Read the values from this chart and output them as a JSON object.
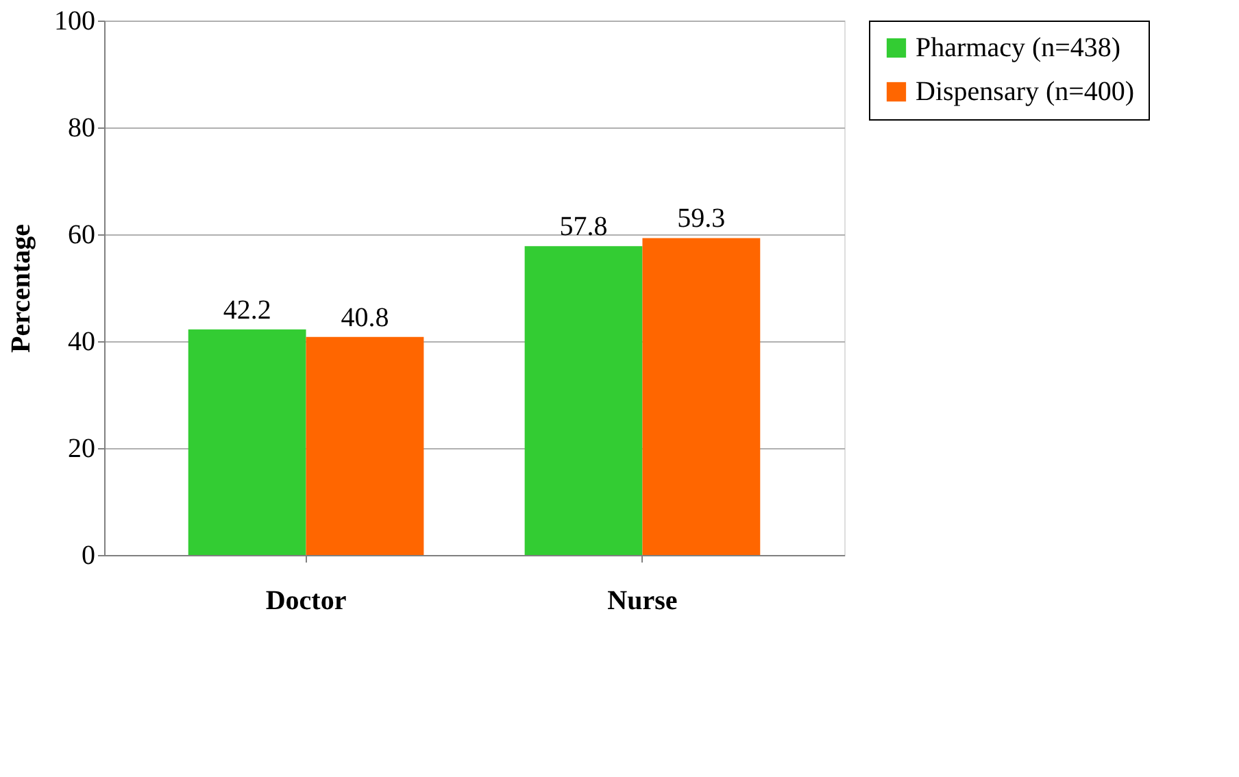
{
  "chart_data": {
    "type": "bar",
    "categories": [
      "Doctor",
      "Nurse"
    ],
    "ylabel": "Percentage",
    "series": [
      {
        "name": "Pharmacy (n=438)",
        "color": "#33cc33",
        "values": [
          42.2,
          57.8
        ]
      },
      {
        "name": "Dispensary (n=400)",
        "color": "#ff6600",
        "values": [
          40.8,
          59.3
        ]
      }
    ],
    "ylim": [
      0,
      100
    ],
    "yticks": [
      0,
      20,
      40,
      60,
      80,
      100
    ],
    "grid": "y",
    "legend": "right",
    "data_labels": true
  }
}
